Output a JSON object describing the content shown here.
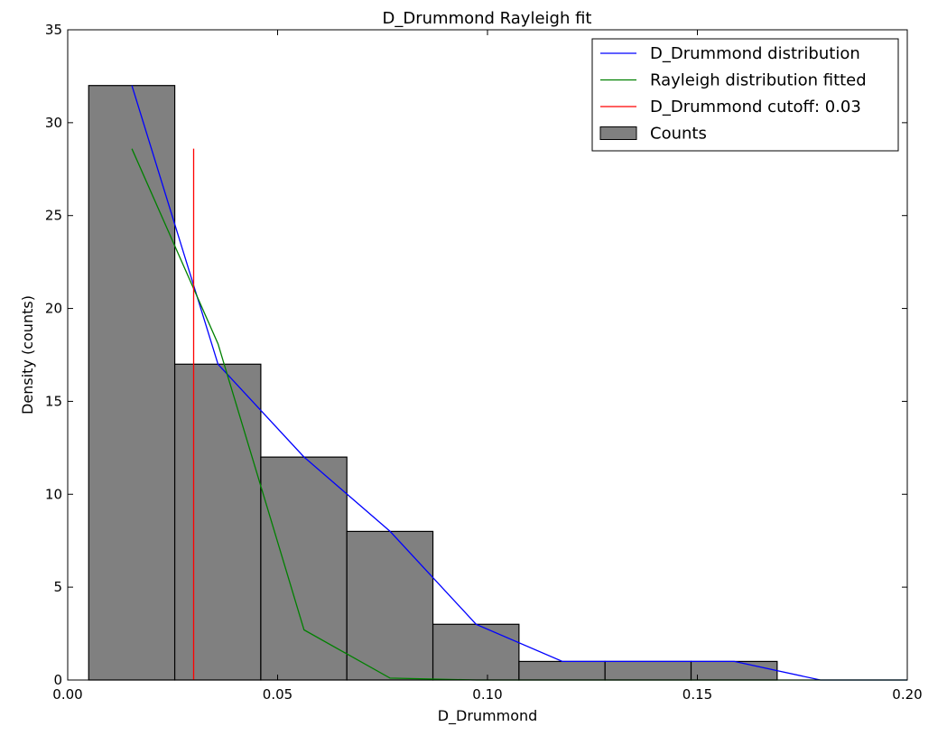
{
  "chart_data": {
    "type": "histogram",
    "title": "D_Drummond Rayleigh fit",
    "xlabel": "D_Drummond",
    "ylabel": "Density (counts)",
    "xlim": [
      0.0,
      0.2
    ],
    "ylim": [
      0,
      35
    ],
    "xticks": [
      0.0,
      0.05,
      0.1,
      0.15,
      0.2
    ],
    "xtick_labels": [
      "0.00",
      "0.05",
      "0.10",
      "0.15",
      "0.20"
    ],
    "yticks": [
      0,
      5,
      10,
      15,
      20,
      25,
      30,
      35
    ],
    "ytick_labels": [
      "0",
      "5",
      "10",
      "15",
      "20",
      "25",
      "30",
      "35"
    ],
    "grid": false,
    "legend_position": "top-right",
    "histogram": {
      "name": "Counts",
      "color": "#808080",
      "bin_edges": [
        0.005,
        0.0255,
        0.046,
        0.0665,
        0.087,
        0.1075,
        0.128,
        0.1485,
        0.169
      ],
      "counts": [
        32,
        17,
        12,
        8,
        3,
        1,
        1,
        1
      ]
    },
    "series": [
      {
        "name": "D_Drummond distribution",
        "color": "#0000ff",
        "x": [
          0.0153,
          0.0358,
          0.0563,
          0.0768,
          0.0973,
          0.1178,
          0.1383,
          0.1588,
          0.1793,
          0.2
        ],
        "y": [
          32,
          17,
          12,
          8,
          3,
          1,
          1,
          1,
          0,
          0
        ]
      },
      {
        "name": "Rayleigh distribution fitted",
        "color": "#008000",
        "x": [
          0.0153,
          0.0358,
          0.0563,
          0.0768,
          0.0973,
          0.1178,
          0.1383,
          0.1588,
          0.1793,
          0.2
        ],
        "y": [
          28.6,
          18.1,
          2.7,
          0.1,
          0.0,
          0.0,
          0.0,
          0.0,
          0.0,
          0.0
        ]
      }
    ],
    "cutoff": {
      "name": "D_Drummond cutoff: 0.03",
      "color": "#ff0000",
      "x": 0.03,
      "y_range": [
        0,
        28.6
      ]
    }
  }
}
